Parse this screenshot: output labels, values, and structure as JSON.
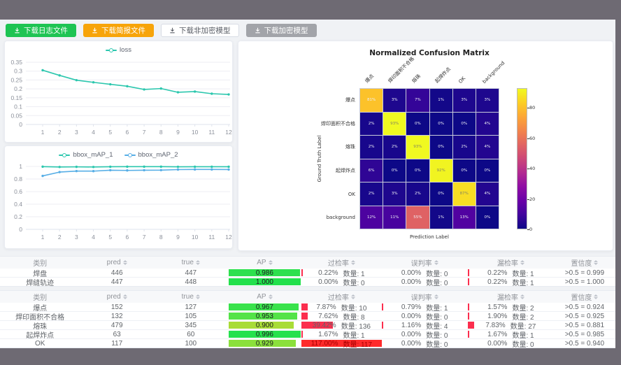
{
  "toolbar": {
    "buttons": [
      {
        "label": "下载日志文件",
        "bg": "#1ec453",
        "fg": "#ffffff",
        "border": "#1ec453"
      },
      {
        "label": "下载简报文件",
        "bg": "#f7a40a",
        "fg": "#ffffff",
        "border": "#f7a40a"
      },
      {
        "label": "下载非加密模型",
        "bg": "#ffffff",
        "fg": "#5a5e66",
        "border": "#d8dce5"
      },
      {
        "label": "下载加密模型",
        "bg": "#a2a4a9",
        "fg": "#ffffff",
        "border": "#a2a4a9"
      }
    ]
  },
  "chart_data": [
    {
      "type": "line",
      "title": "",
      "legend_position": "top",
      "x": [
        "1",
        "2",
        "3",
        "4",
        "5",
        "6",
        "7",
        "8",
        "9",
        "10",
        "11",
        "12"
      ],
      "series": [
        {
          "name": "loss",
          "color": "#2cc7ae",
          "values": [
            0.305,
            0.276,
            0.249,
            0.237,
            0.226,
            0.215,
            0.197,
            0.202,
            0.181,
            0.185,
            0.173,
            0.169
          ]
        }
      ],
      "ylim": [
        0,
        0.35
      ],
      "yticks": [
        "0",
        "0.05",
        "0.1",
        "0.15",
        "0.2",
        "0.25",
        "0.3",
        "0.35"
      ],
      "grid": true
    },
    {
      "type": "line",
      "title": "",
      "legend_position": "top",
      "x": [
        "1",
        "2",
        "3",
        "4",
        "5",
        "6",
        "7",
        "8",
        "9",
        "10",
        "11",
        "12"
      ],
      "series": [
        {
          "name": "bbox_mAP_1",
          "color": "#2cc7ae",
          "values": [
            0.996,
            0.991,
            0.993,
            0.991,
            0.995,
            0.996,
            0.996,
            0.996,
            0.994,
            0.995,
            0.995,
            0.995
          ]
        },
        {
          "name": "bbox_mAP_2",
          "color": "#57aee6",
          "values": [
            0.849,
            0.91,
            0.926,
            0.925,
            0.94,
            0.936,
            0.94,
            0.941,
            0.95,
            0.952,
            0.952,
            0.951
          ]
        }
      ],
      "ylim": [
        0,
        1
      ],
      "yticks": [
        "0",
        "0.2",
        "0.4",
        "0.6",
        "0.8",
        "1"
      ],
      "grid": true
    },
    {
      "type": "heatmap",
      "title": "Normalized Confusion Matrix",
      "xlabel": "Prediction Label",
      "ylabel": "Ground Truth Label",
      "categories_x": [
        "爆点",
        "焊印面积不合格",
        "熔珠",
        "起焊炸点",
        "OK",
        "background"
      ],
      "categories_y": [
        "爆点",
        "焊印面积不合格",
        "熔珠",
        "起焊炸点",
        "OK",
        "background"
      ],
      "values_pct": [
        [
          81,
          3,
          7,
          1,
          3,
          3
        ],
        [
          2,
          93,
          0,
          0,
          0,
          4
        ],
        [
          2,
          2,
          93,
          0,
          2,
          4
        ],
        [
          6,
          0,
          0,
          92,
          0,
          0
        ],
        [
          2,
          3,
          2,
          0,
          87,
          4
        ],
        [
          12,
          11,
          55,
          1,
          13,
          0
        ]
      ],
      "vmax": 93,
      "colorbar": {
        "ticks": [
          0,
          20,
          40,
          60,
          80
        ]
      },
      "colormap_stops": [
        "#0d0887",
        "#41049d",
        "#6a00a8",
        "#8f0da4",
        "#b12a90",
        "#cc4778",
        "#e16462",
        "#f2844b",
        "#fca636",
        "#fcce25",
        "#f0f921"
      ]
    }
  ],
  "tables": {
    "count_label": "数量:",
    "red_bar_color": "#fb2e4e",
    "red_bar_full_color": "#ff2b2b",
    "red_bar_full_text": "#a80000",
    "headers": [
      "类别",
      "pred",
      "true",
      "AP",
      "过检率",
      "误判率",
      "漏检率",
      "置信度"
    ],
    "sortable": [
      false,
      true,
      true,
      true,
      true,
      true,
      true,
      true
    ],
    "groups": [
      {
        "rows": [
          {
            "category": "焊盘",
            "pred": "446",
            "true": "447",
            "ap": "0.986",
            "ap_color": "#2ee04e",
            "guo": {
              "pct": "0.22%",
              "count": "1",
              "bar": 0.22
            },
            "wu": {
              "pct": "0.00%",
              "count": "0",
              "bar": 0
            },
            "lou": {
              "pct": "0.22%",
              "count": "1",
              "bar": 0.22
            },
            "conf": ">0.5 = 0.999"
          },
          {
            "category": "焊缝轨迹",
            "pred": "447",
            "true": "448",
            "ap": "1.000",
            "ap_color": "#23e04c",
            "guo": {
              "pct": "0.00%",
              "count": "0",
              "bar": 0
            },
            "wu": {
              "pct": "0.00%",
              "count": "0",
              "bar": 0
            },
            "lou": {
              "pct": "0.22%",
              "count": "1",
              "bar": 0.22
            },
            "conf": ">0.5 = 1.000"
          }
        ]
      },
      {
        "rows": [
          {
            "category": "爆点",
            "pred": "152",
            "true": "127",
            "ap": "0.967",
            "ap_color": "#39e24b",
            "guo": {
              "pct": "7.87%",
              "count": "10",
              "bar": 7.87
            },
            "wu": {
              "pct": "0.79%",
              "count": "1",
              "bar": 0.79
            },
            "lou": {
              "pct": "1.57%",
              "count": "2",
              "bar": 1.57
            },
            "conf": ">0.5 = 0.924"
          },
          {
            "category": "焊印面积不合格",
            "pred": "132",
            "true": "105",
            "ap": "0.953",
            "ap_color": "#54e348",
            "guo": {
              "pct": "7.62%",
              "count": "8",
              "bar": 7.62
            },
            "wu": {
              "pct": "0.00%",
              "count": "0",
              "bar": 0
            },
            "lou": {
              "pct": "1.90%",
              "count": "2",
              "bar": 1.9
            },
            "conf": ">0.5 = 0.925"
          },
          {
            "category": "熔珠",
            "pred": "479",
            "true": "345",
            "ap": "0.900",
            "ap_color": "#a9dc37",
            "guo": {
              "pct": "39.42%",
              "count": "136",
              "bar": 39.42
            },
            "wu": {
              "pct": "1.16%",
              "count": "4",
              "bar": 1.16
            },
            "lou": {
              "pct": "7.83%",
              "count": "27",
              "bar": 7.83
            },
            "conf": ">0.5 = 0.881"
          },
          {
            "category": "起焊炸点",
            "pred": "63",
            "true": "60",
            "ap": "0.996",
            "ap_color": "#26e14d",
            "guo": {
              "pct": "1.67%",
              "count": "1",
              "bar": 1.67
            },
            "wu": {
              "pct": "0.00%",
              "count": "0",
              "bar": 0
            },
            "lou": {
              "pct": "1.67%",
              "count": "1",
              "bar": 1.67
            },
            "conf": ">0.5 = 0.985"
          },
          {
            "category": "OK",
            "pred": "117",
            "true": "100",
            "ap": "0.929",
            "ap_color": "#8be03c",
            "guo": {
              "pct": "117.00%",
              "count": "117",
              "bar": 117
            },
            "wu": {
              "pct": "0.00%",
              "count": "0",
              "bar": 0
            },
            "lou": {
              "pct": "0.00%",
              "count": "0",
              "bar": 0
            },
            "conf": ">0.5 = 0.940"
          }
        ]
      }
    ]
  }
}
